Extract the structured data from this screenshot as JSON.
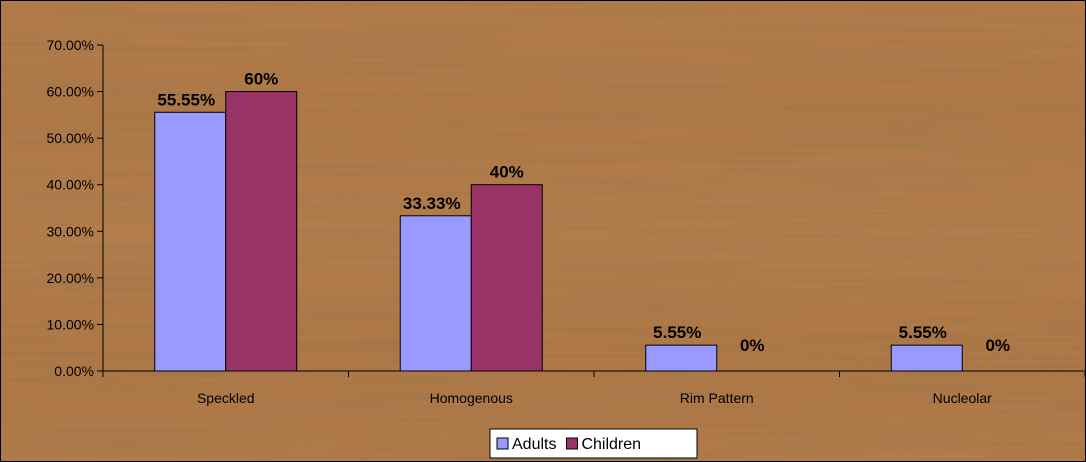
{
  "chart_data": {
    "type": "bar",
    "categories": [
      "Speckled",
      "Homogenous",
      "Rim Pattern",
      "Nucleolar"
    ],
    "series": [
      {
        "name": "Adults",
        "color": "#9999ff",
        "values": [
          55.55,
          33.33,
          5.55,
          5.55
        ],
        "labels": [
          "55.55%",
          "33.33%",
          "5.55%",
          "5.55%"
        ]
      },
      {
        "name": "Children",
        "color": "#993366",
        "values": [
          60,
          40,
          0,
          0
        ],
        "labels": [
          "60%",
          "40%",
          "0%",
          "0%"
        ]
      }
    ],
    "ylim": [
      0,
      70
    ],
    "yticks": [
      0,
      10,
      20,
      30,
      40,
      50,
      60,
      70
    ],
    "ytick_labels": [
      "0.00%",
      "10.00%",
      "20.00%",
      "30.00%",
      "40.00%",
      "50.00%",
      "60.00%",
      "70.00%"
    ],
    "grid": false,
    "legend_position": "bottom",
    "background": "wood-grain"
  }
}
